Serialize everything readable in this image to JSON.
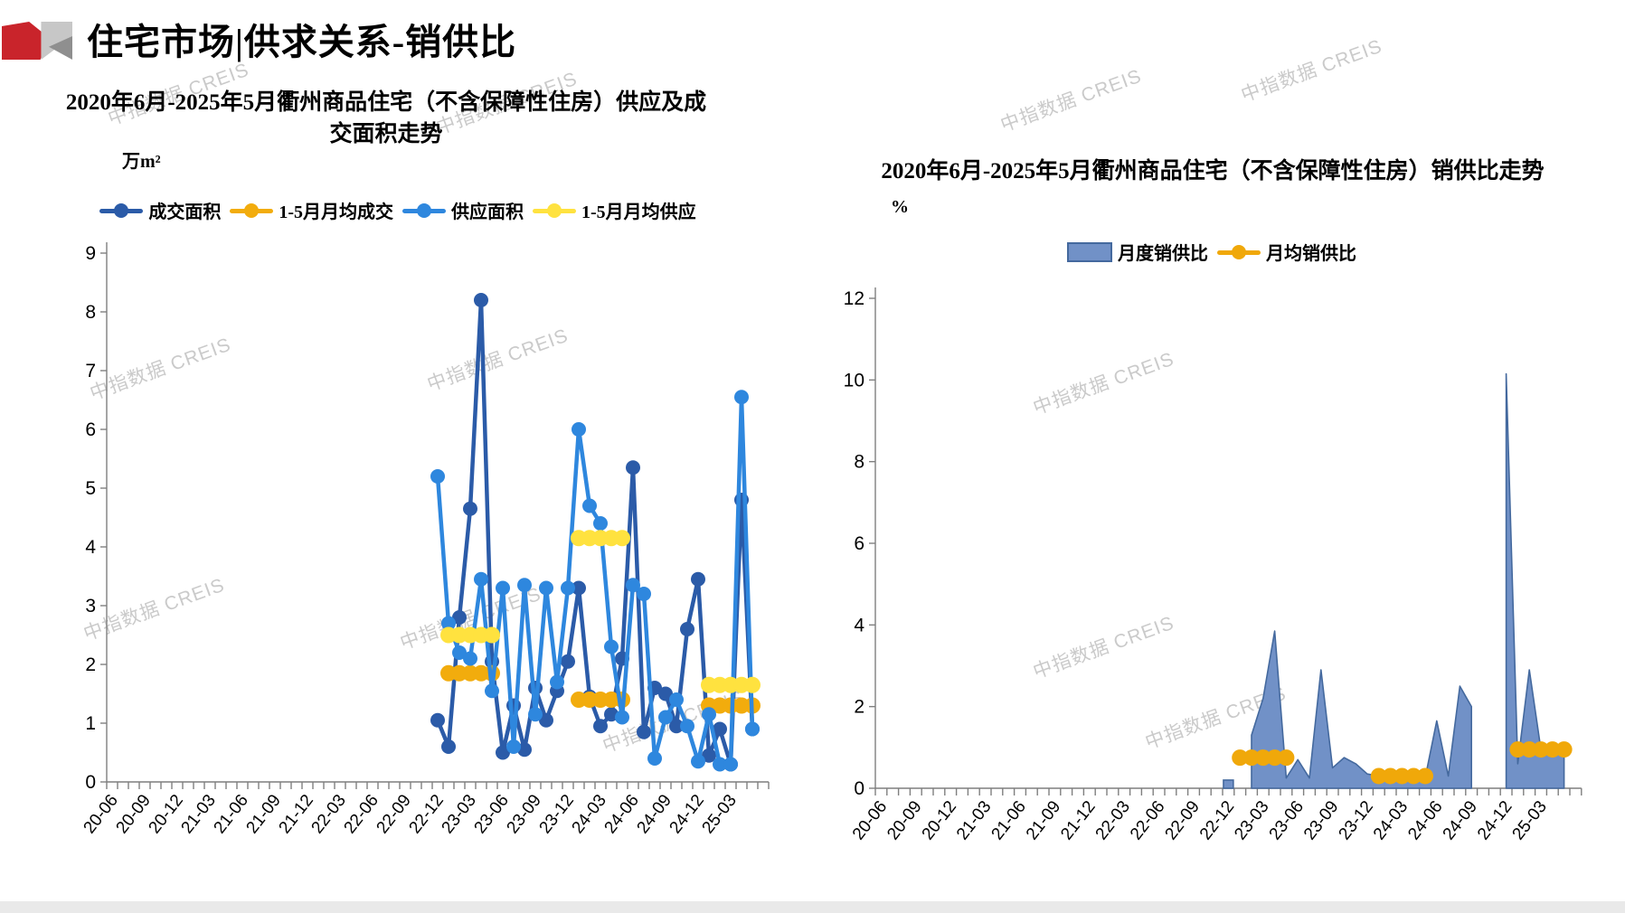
{
  "header": {
    "title": "住宅市场|供求关系-销供比"
  },
  "watermark": {
    "text": "中指数据 CREIS"
  },
  "colors": {
    "deal": "#2B5BA8",
    "deal_avg": "#F2AC0D",
    "supply": "#2E87DE",
    "supply_avg": "#FFE23F",
    "ratio_fill": "#7191C7",
    "ratio_stroke": "#44699E",
    "ratio_avg": "#F0A80A"
  },
  "chart_data": [
    {
      "type": "line",
      "title": "2020年6月-2025年5月衢州商品住宅（不含保障性住房）供应及成交面积走势",
      "unit": "万m²",
      "categories": [
        "20-06",
        "20-07",
        "20-08",
        "20-09",
        "20-10",
        "20-11",
        "20-12",
        "21-01",
        "21-02",
        "21-03",
        "21-04",
        "21-05",
        "21-06",
        "21-07",
        "21-08",
        "21-09",
        "21-10",
        "21-11",
        "21-12",
        "22-01",
        "22-02",
        "22-03",
        "22-04",
        "22-05",
        "22-06",
        "22-07",
        "22-08",
        "22-09",
        "22-10",
        "22-11",
        "22-12",
        "23-01",
        "23-02",
        "23-03",
        "23-04",
        "23-05",
        "23-06",
        "23-07",
        "23-08",
        "23-09",
        "23-10",
        "23-11",
        "23-12",
        "24-01",
        "24-02",
        "24-03",
        "24-04",
        "24-05",
        "24-06",
        "24-07",
        "24-08",
        "24-09",
        "24-10",
        "24-11",
        "24-12",
        "25-01",
        "25-02",
        "25-03",
        "25-04",
        "25-05"
      ],
      "x_tick_labels": [
        "20-06",
        "20-09",
        "20-12",
        "21-03",
        "21-06",
        "21-09",
        "21-12",
        "22-03",
        "22-06",
        "22-09",
        "22-12",
        "23-03",
        "23-06",
        "23-09",
        "23-12",
        "24-03",
        "24-06",
        "24-09",
        "24-12",
        "25-03"
      ],
      "y_axis": {
        "min": 0,
        "max": 9,
        "step": 1,
        "tick_labels": [
          "0",
          "1",
          "2",
          "3",
          "4",
          "5",
          "6",
          "7",
          "8",
          "9"
        ]
      },
      "series": [
        {
          "name": "成交面积",
          "color_key": "deal",
          "style": "line",
          "start": "22-12",
          "values": [
            1.05,
            0.6,
            2.8,
            4.65,
            8.2,
            2.05,
            0.5,
            1.3,
            0.55,
            1.6,
            1.05,
            1.55,
            2.05,
            3.3,
            1.45,
            0.95,
            1.15,
            2.1,
            5.35,
            0.85,
            1.6,
            1.5,
            0.95,
            2.6,
            3.45,
            0.45,
            0.9,
            0.3,
            4.8,
            0.9
          ]
        },
        {
          "name": "1-5月月均成交",
          "color_key": "deal_avg",
          "style": "avg",
          "segments": [
            {
              "start": "23-01",
              "end": "23-05",
              "value": 1.85
            },
            {
              "start": "24-01",
              "end": "24-05",
              "value": 1.4
            },
            {
              "start": "25-01",
              "end": "25-05",
              "value": 1.3
            }
          ]
        },
        {
          "name": "供应面积",
          "color_key": "supply",
          "style": "line",
          "start": "22-12",
          "values": [
            5.2,
            2.7,
            2.2,
            2.1,
            3.45,
            1.55,
            3.3,
            0.6,
            3.35,
            1.15,
            3.3,
            1.7,
            3.3,
            6.0,
            4.7,
            4.4,
            2.3,
            1.1,
            3.35,
            3.2,
            0.4,
            1.1,
            1.4,
            0.95,
            0.35,
            1.15,
            0.3,
            0.3,
            6.55,
            0.9
          ]
        },
        {
          "name": "1-5月月均供应",
          "color_key": "supply_avg",
          "style": "avg",
          "segments": [
            {
              "start": "23-01",
              "end": "23-05",
              "value": 2.5
            },
            {
              "start": "24-01",
              "end": "24-05",
              "value": 4.15
            },
            {
              "start": "25-01",
              "end": "25-05",
              "value": 1.65
            }
          ]
        }
      ]
    },
    {
      "type": "area",
      "title": "2020年6月-2025年5月衢州商品住宅（不含保障性住房）销供比走势",
      "unit": "%",
      "categories": [
        "20-06",
        "20-07",
        "20-08",
        "20-09",
        "20-10",
        "20-11",
        "20-12",
        "21-01",
        "21-02",
        "21-03",
        "21-04",
        "21-05",
        "21-06",
        "21-07",
        "21-08",
        "21-09",
        "21-10",
        "21-11",
        "21-12",
        "22-01",
        "22-02",
        "22-03",
        "22-04",
        "22-05",
        "22-06",
        "22-07",
        "22-08",
        "22-09",
        "22-10",
        "22-11",
        "22-12",
        "23-01",
        "23-02",
        "23-03",
        "23-04",
        "23-05",
        "23-06",
        "23-07",
        "23-08",
        "23-09",
        "23-10",
        "23-11",
        "23-12",
        "24-01",
        "24-02",
        "24-03",
        "24-04",
        "24-05",
        "24-06",
        "24-07",
        "24-08",
        "24-09",
        "24-10",
        "24-11",
        "24-12",
        "25-01",
        "25-02",
        "25-03",
        "25-04",
        "25-05"
      ],
      "x_tick_labels": [
        "20-06",
        "20-09",
        "20-12",
        "21-03",
        "21-06",
        "21-09",
        "21-12",
        "22-03",
        "22-06",
        "22-09",
        "22-12",
        "23-03",
        "23-06",
        "23-09",
        "23-12",
        "24-03",
        "24-06",
        "24-09",
        "24-12",
        "25-03"
      ],
      "y_axis": {
        "min": 0,
        "max": 12,
        "step": 2,
        "tick_labels": [
          "0",
          "2",
          "4",
          "6",
          "8",
          "10",
          "12"
        ]
      },
      "series": [
        {
          "name": "月度销供比",
          "color_key": "ratio",
          "style": "area",
          "start": "22-12",
          "values": [
            0.2,
            null,
            1.3,
            2.2,
            3.85,
            0.25,
            0.7,
            0.25,
            2.9,
            0.5,
            0.75,
            0.6,
            0.35,
            0.3,
            0.2,
            0.3,
            0.35,
            0.25,
            1.65,
            0.3,
            2.5,
            2.0,
            null,
            null,
            10.15,
            0.6,
            2.9,
            0.95,
            1.05,
            0.95
          ]
        },
        {
          "name": "月均销供比",
          "color_key": "ratio_avg",
          "style": "avg",
          "segments": [
            {
              "start": "23-01",
              "end": "23-05",
              "value": 0.75
            },
            {
              "start": "24-01",
              "end": "24-05",
              "value": 0.3
            },
            {
              "start": "25-01",
              "end": "25-05",
              "value": 0.95
            }
          ]
        }
      ]
    }
  ]
}
